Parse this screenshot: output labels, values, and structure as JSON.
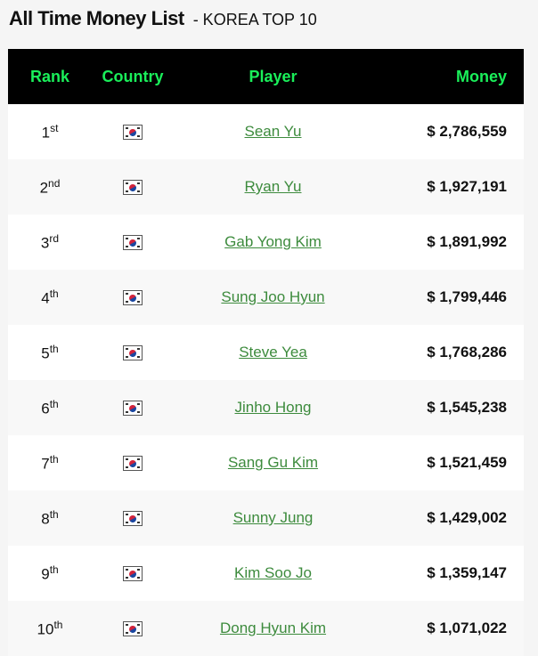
{
  "title": "All Time Money List",
  "subtitle": "- KOREA TOP 10",
  "colors": {
    "header_bg": "#000000",
    "header_text": "#1aef5a",
    "link": "#3d8b3d"
  },
  "columns": {
    "rank": "Rank",
    "country": "Country",
    "player": "Player",
    "money": "Money"
  },
  "rows": [
    {
      "rank": "1",
      "suffix": "st",
      "country_icon": "south-korea-flag-icon",
      "player": "Sean Yu",
      "money": "$ 2,786,559"
    },
    {
      "rank": "2",
      "suffix": "nd",
      "country_icon": "south-korea-flag-icon",
      "player": "Ryan Yu",
      "money": "$ 1,927,191"
    },
    {
      "rank": "3",
      "suffix": "rd",
      "country_icon": "south-korea-flag-icon",
      "player": "Gab Yong Kim",
      "money": "$ 1,891,992"
    },
    {
      "rank": "4",
      "suffix": "th",
      "country_icon": "south-korea-flag-icon",
      "player": "Sung Joo Hyun",
      "money": "$ 1,799,446"
    },
    {
      "rank": "5",
      "suffix": "th",
      "country_icon": "south-korea-flag-icon",
      "player": "Steve Yea",
      "money": "$ 1,768,286"
    },
    {
      "rank": "6",
      "suffix": "th",
      "country_icon": "south-korea-flag-icon",
      "player": "Jinho Hong",
      "money": "$ 1,545,238"
    },
    {
      "rank": "7",
      "suffix": "th",
      "country_icon": "south-korea-flag-icon",
      "player": "Sang Gu Kim",
      "money": "$ 1,521,459"
    },
    {
      "rank": "8",
      "suffix": "th",
      "country_icon": "south-korea-flag-icon",
      "player": "Sunny Jung",
      "money": "$ 1,429,002"
    },
    {
      "rank": "9",
      "suffix": "th",
      "country_icon": "south-korea-flag-icon",
      "player": "Kim Soo Jo",
      "money": "$ 1,359,147"
    },
    {
      "rank": "10",
      "suffix": "th",
      "country_icon": "south-korea-flag-icon",
      "player": "Dong Hyun Kim",
      "money": "$ 1,071,022"
    }
  ]
}
